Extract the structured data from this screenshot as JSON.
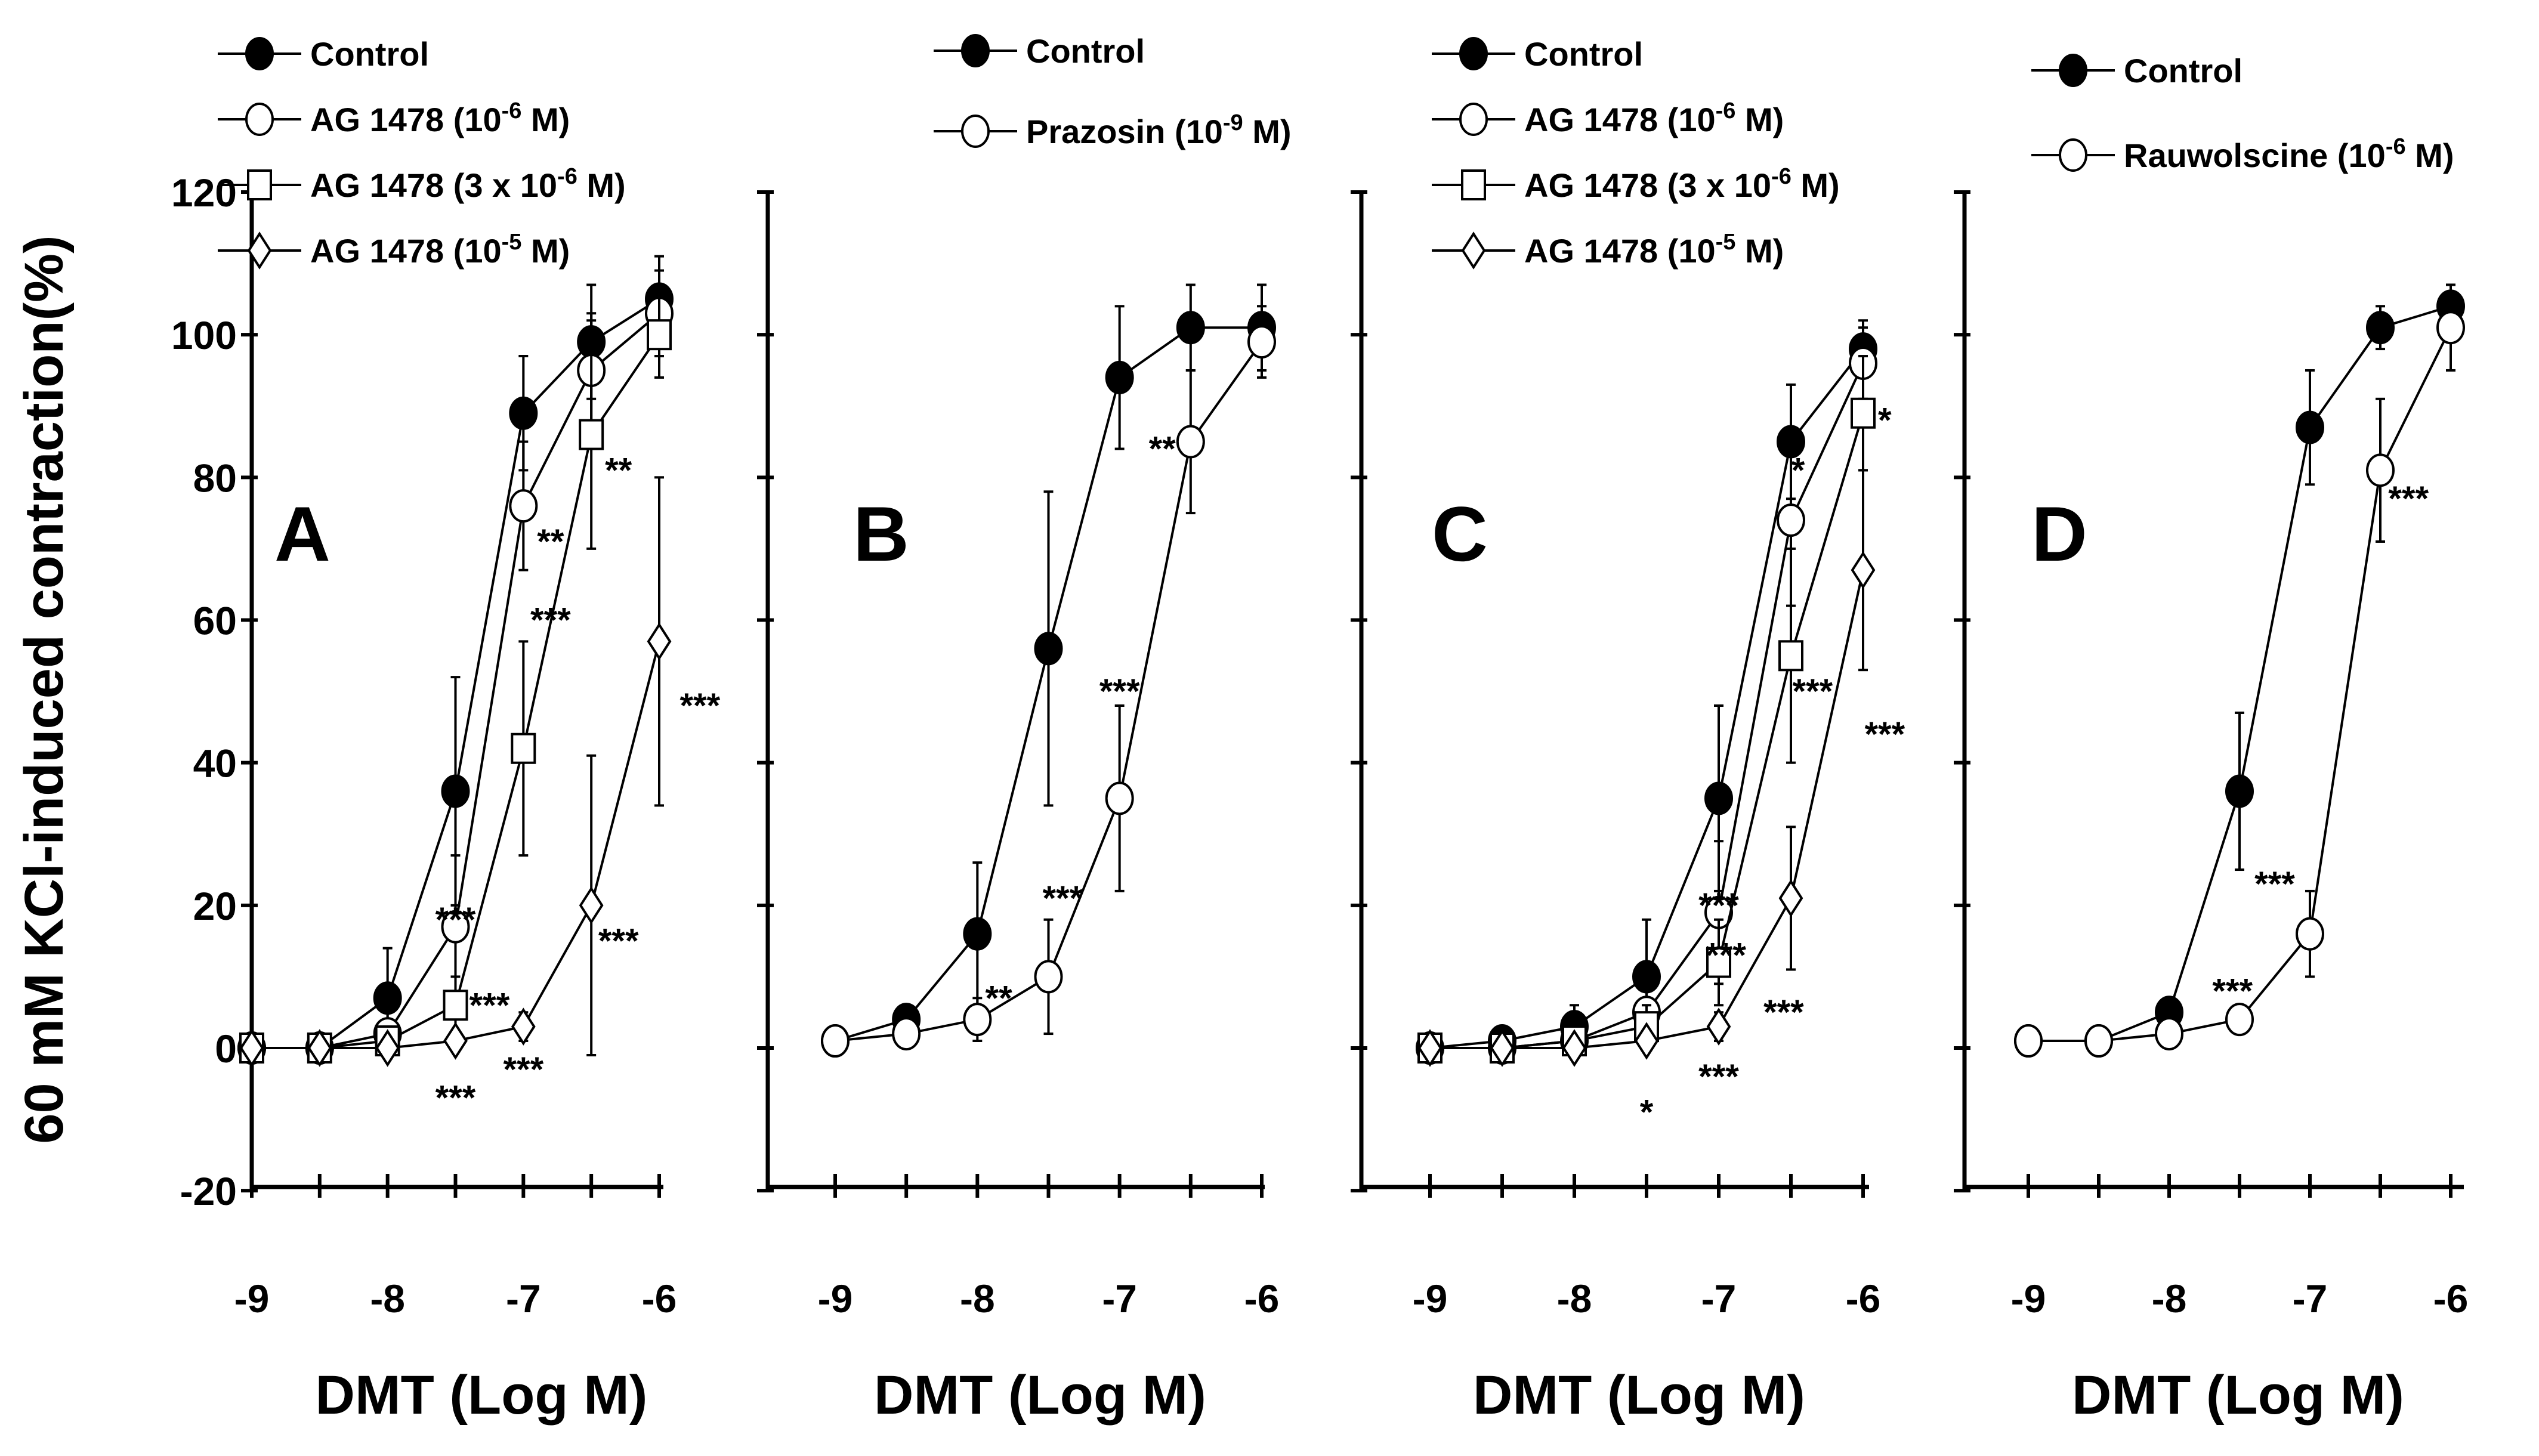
{
  "chart_data": [
    {
      "type": "line",
      "panel": "A",
      "xlabel": "DMT (Log M)",
      "ylabel": "60 mM KCl-induced contraction(%)",
      "ylim": [
        -20,
        120
      ],
      "yticks": [
        "-20",
        "0",
        "20",
        "40",
        "60",
        "80",
        "100",
        "120"
      ],
      "x": [
        -9,
        -8.5,
        -8,
        -7.5,
        -7,
        -6.5,
        -6
      ],
      "xticks": [
        "-9",
        "-8",
        "-7",
        "-6"
      ],
      "legend": [
        "Control",
        "AG 1478 (10-6 M)",
        "AG 1478 (3 x 10-6 M)",
        "AG 1478 (10-5 M)"
      ],
      "series": [
        {
          "name": "Control",
          "marker": "filled-circle",
          "values": [
            0,
            0,
            7,
            36,
            89,
            99,
            105
          ],
          "errors": [
            0,
            1,
            7,
            16,
            8,
            8,
            6
          ]
        },
        {
          "name": "AG 1478 (10-6 M)",
          "marker": "open-circle",
          "values": [
            0,
            0,
            2,
            17,
            76,
            95,
            103
          ],
          "errors": [
            0,
            1,
            3,
            10,
            9,
            8,
            6
          ]
        },
        {
          "name": "AG 1478 (3 x 10-6 M)",
          "marker": "open-square",
          "values": [
            0,
            0,
            1,
            6,
            42,
            86,
            100
          ],
          "errors": [
            0,
            1,
            2,
            4,
            15,
            16,
            6
          ]
        },
        {
          "name": "AG 1478 (10-5 M)",
          "marker": "open-diamond",
          "values": [
            0,
            0,
            0,
            1,
            3,
            20,
            57
          ],
          "errors": [
            0,
            1,
            1,
            1,
            2,
            21,
            23
          ]
        }
      ],
      "annotations": [
        {
          "text": "***",
          "x": -7.5,
          "y": 18
        },
        {
          "text": "***",
          "x": -7.25,
          "y": 6
        },
        {
          "text": "***",
          "x": -7.5,
          "y": -7
        },
        {
          "text": "***",
          "x": -7,
          "y": -3
        },
        {
          "text": "***",
          "x": -6.8,
          "y": 60
        },
        {
          "text": "**",
          "x": -6.8,
          "y": 71
        },
        {
          "text": "**",
          "x": -6.3,
          "y": 81
        },
        {
          "text": "***",
          "x": -5.7,
          "y": 48
        },
        {
          "text": "***",
          "x": -6.3,
          "y": 15
        }
      ]
    },
    {
      "type": "line",
      "panel": "B",
      "xlabel": "DMT (Log M)",
      "ylim": [
        -20,
        120
      ],
      "x": [
        -9,
        -8.5,
        -8,
        -7.5,
        -7,
        -6.5,
        -6
      ],
      "xticks": [
        "-9",
        "-8",
        "-7",
        "-6"
      ],
      "legend": [
        "Control",
        "Prazosin (10-9 M)"
      ],
      "series": [
        {
          "name": "Control",
          "marker": "filled-circle",
          "values": [
            1,
            4,
            16,
            56,
            94,
            101,
            101
          ],
          "errors": [
            0,
            1,
            10,
            22,
            10,
            6,
            6
          ]
        },
        {
          "name": "Prazosin (10-9 M)",
          "marker": "open-circle",
          "values": [
            1,
            2,
            4,
            10,
            35,
            85,
            99
          ],
          "errors": [
            0,
            1,
            3,
            8,
            13,
            10,
            5
          ]
        }
      ],
      "annotations": [
        {
          "text": "**",
          "x": -7.85,
          "y": 7
        },
        {
          "text": "***",
          "x": -7.4,
          "y": 21
        },
        {
          "text": "***",
          "x": -7,
          "y": 50
        },
        {
          "text": "**",
          "x": -6.7,
          "y": 84
        }
      ]
    },
    {
      "type": "line",
      "panel": "C",
      "xlabel": "DMT (Log M)",
      "ylim": [
        -20,
        120
      ],
      "x": [
        -9,
        -8.5,
        -8,
        -7.5,
        -7,
        -6.5,
        -6
      ],
      "xticks": [
        "-9",
        "-8",
        "-7",
        "-6"
      ],
      "legend": [
        "Control",
        "AG 1478 (10-6 M)",
        "AG 1478 (3 x 10-6 M)",
        "AG 1478 (10-5 M)"
      ],
      "series": [
        {
          "name": "Control",
          "marker": "filled-circle",
          "values": [
            0,
            1,
            3,
            10,
            35,
            85,
            98
          ],
          "errors": [
            0,
            1,
            3,
            8,
            13,
            8,
            4
          ]
        },
        {
          "name": "AG 1478 (10-6 M)",
          "marker": "open-circle",
          "values": [
            0,
            0,
            1,
            5,
            19,
            74,
            96
          ],
          "errors": [
            0,
            1,
            2,
            5,
            10,
            12,
            5
          ]
        },
        {
          "name": "AG 1478 (3 x 10-6 M)",
          "marker": "open-square",
          "values": [
            0,
            0,
            1,
            3,
            12,
            55,
            89
          ],
          "errors": [
            0,
            1,
            1,
            3,
            6,
            15,
            8
          ]
        },
        {
          "name": "AG 1478 (10-5 M)",
          "marker": "open-diamond",
          "values": [
            0,
            0,
            0,
            1,
            3,
            21,
            67
          ],
          "errors": [
            0,
            1,
            1,
            1,
            2,
            10,
            14
          ]
        }
      ],
      "annotations": [
        {
          "text": "*",
          "x": -7.5,
          "y": -9
        },
        {
          "text": "***",
          "x": -7,
          "y": -4
        },
        {
          "text": "***",
          "x": -6.55,
          "y": 5
        },
        {
          "text": "***",
          "x": -7,
          "y": 20
        },
        {
          "text": "***",
          "x": -6.95,
          "y": 13
        },
        {
          "text": "***",
          "x": -6.35,
          "y": 50
        },
        {
          "text": "***",
          "x": -5.85,
          "y": 44
        },
        {
          "text": "*",
          "x": -6.45,
          "y": 81
        },
        {
          "text": "*",
          "x": -5.85,
          "y": 88
        }
      ]
    },
    {
      "type": "line",
      "panel": "D",
      "xlabel": "DMT (Log M)",
      "ylim": [
        -20,
        120
      ],
      "x": [
        -9,
        -8.5,
        -8,
        -7.5,
        -7,
        -6.5,
        -6
      ],
      "xticks": [
        "-9",
        "-8",
        "-7",
        "-6"
      ],
      "legend": [
        "Control",
        "Rauwolscine (10-6 M)"
      ],
      "series": [
        {
          "name": "Control",
          "marker": "filled-circle",
          "values": [
            1,
            1,
            5,
            36,
            87,
            101,
            104
          ],
          "errors": [
            0,
            1,
            2,
            11,
            8,
            3,
            3
          ]
        },
        {
          "name": "Rauwolscine (10-6 M)",
          "marker": "open-circle",
          "values": [
            1,
            1,
            2,
            4,
            16,
            81,
            101
          ],
          "errors": [
            0,
            1,
            1,
            1,
            6,
            10,
            6
          ]
        }
      ],
      "annotations": [
        {
          "text": "***",
          "x": -7.55,
          "y": 8
        },
        {
          "text": "***",
          "x": -7.25,
          "y": 23
        },
        {
          "text": "***",
          "x": -6.3,
          "y": 77
        }
      ]
    }
  ]
}
